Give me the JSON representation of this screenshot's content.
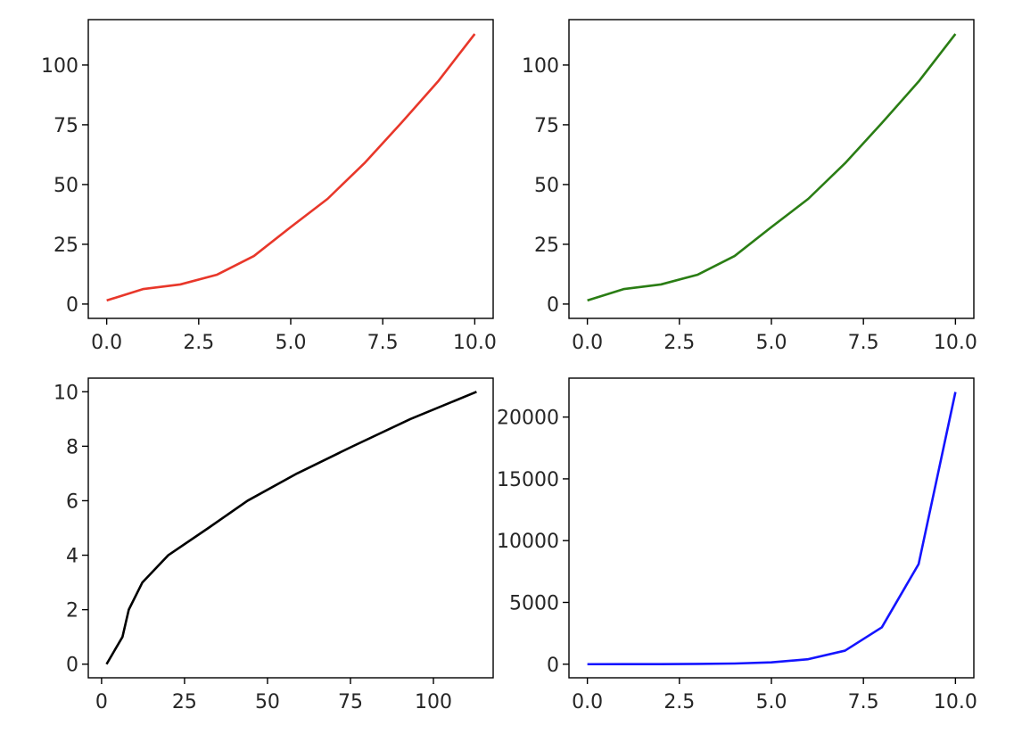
{
  "chart_data": [
    {
      "type": "line",
      "color": "#e8372a",
      "series": [
        {
          "x": [
            0,
            1,
            2,
            3,
            4,
            5,
            6,
            7,
            8,
            9,
            10
          ],
          "y": [
            1.5,
            6.3,
            8.2,
            12.3,
            20.1,
            32.2,
            44.0,
            58.9,
            75.7,
            93.1,
            113.0
          ]
        }
      ],
      "xlim": [
        -0.5,
        10.5
      ],
      "ylim": [
        -6,
        119
      ],
      "xticks": [
        0,
        2.5,
        5,
        7.5,
        10
      ],
      "xtick_labels": [
        "0.0",
        "2.5",
        "5.0",
        "7.5",
        "10.0"
      ],
      "yticks": [
        0,
        25,
        50,
        75,
        100
      ],
      "ytick_labels": [
        "0",
        "25",
        "50",
        "75",
        "100"
      ]
    },
    {
      "type": "line",
      "color": "#2a7d14",
      "series": [
        {
          "x": [
            0,
            1,
            2,
            3,
            4,
            5,
            6,
            7,
            8,
            9,
            10
          ],
          "y": [
            1.5,
            6.3,
            8.2,
            12.3,
            20.1,
            32.2,
            44.0,
            58.9,
            75.7,
            93.1,
            113.0
          ]
        }
      ],
      "xlim": [
        -0.5,
        10.5
      ],
      "ylim": [
        -6,
        119
      ],
      "xticks": [
        0,
        2.5,
        5,
        7.5,
        10
      ],
      "xtick_labels": [
        "0.0",
        "2.5",
        "5.0",
        "7.5",
        "10.0"
      ],
      "yticks": [
        0,
        25,
        50,
        75,
        100
      ],
      "ytick_labels": [
        "0",
        "25",
        "50",
        "75",
        "100"
      ]
    },
    {
      "type": "line",
      "color": "#000000",
      "series": [
        {
          "x": [
            1.5,
            6.3,
            8.2,
            12.3,
            20.1,
            32.2,
            44.0,
            58.9,
            75.7,
            93.1,
            113.0
          ],
          "y": [
            0,
            1,
            2,
            3,
            4,
            5,
            6,
            7,
            8,
            9,
            10
          ]
        }
      ],
      "xlim": [
        -4,
        118
      ],
      "ylim": [
        -0.5,
        10.5
      ],
      "xticks": [
        0,
        25,
        50,
        75,
        100
      ],
      "xtick_labels": [
        "0",
        "25",
        "50",
        "75",
        "100"
      ],
      "yticks": [
        0,
        2,
        4,
        6,
        8,
        10
      ],
      "ytick_labels": [
        "0",
        "2",
        "4",
        "6",
        "8",
        "10"
      ]
    },
    {
      "type": "line",
      "color": "#1414ff",
      "series": [
        {
          "x": [
            0,
            1,
            2,
            3,
            4,
            5,
            6,
            7,
            8,
            9,
            10
          ],
          "y": [
            1,
            3,
            7,
            20,
            55,
            148,
            403,
            1097,
            2981,
            8103,
            22026
          ]
        }
      ],
      "xlim": [
        -0.5,
        10.5
      ],
      "ylim": [
        -1100,
        23150
      ],
      "xticks": [
        0,
        2.5,
        5,
        7.5,
        10
      ],
      "xtick_labels": [
        "0.0",
        "2.5",
        "5.0",
        "7.5",
        "10.0"
      ],
      "yticks": [
        0,
        5000,
        10000,
        15000,
        20000
      ],
      "ytick_labels": [
        "0",
        "5000",
        "10000",
        "15000",
        "20000"
      ]
    }
  ]
}
